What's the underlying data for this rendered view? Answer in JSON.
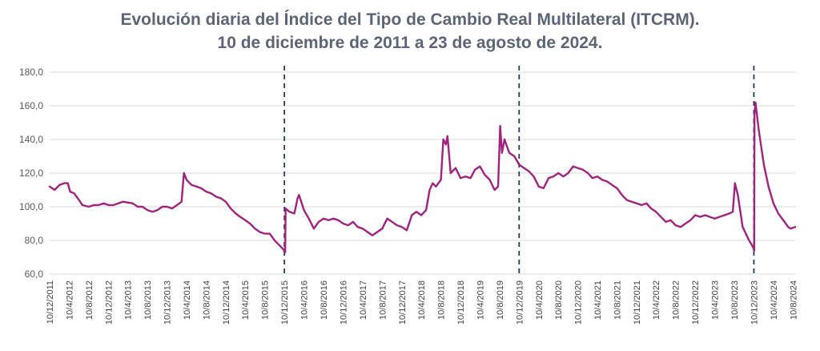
{
  "chart_data": {
    "type": "line",
    "title": "Evolución diaria del Índice del Tipo de Cambio Real Multilateral (ITCRM).",
    "subtitle": "10 de diciembre de 2011 a 23 de agosto de 2024.",
    "xlabel": "",
    "ylabel": "",
    "ylim": [
      60,
      180
    ],
    "y_ticks": [
      "60,0",
      "80,0",
      "100,0",
      "120,0",
      "140,0",
      "160,0",
      "180,0"
    ],
    "grid": true,
    "legend": "none",
    "x_range": [
      "2011-12-10",
      "2024-08-23"
    ],
    "x_ticks": [
      "10/12/2011",
      "10/4/2012",
      "10/8/2012",
      "10/12/2012",
      "10/4/2013",
      "10/8/2013",
      "10/12/2013",
      "10/4/2014",
      "10/8/2014",
      "10/12/2014",
      "10/4/2015",
      "10/8/2015",
      "10/12/2015",
      "10/4/2016",
      "10/8/2016",
      "10/12/2016",
      "10/4/2017",
      "10/8/2017",
      "10/12/2017",
      "10/4/2018",
      "10/8/2018",
      "10/12/2018",
      "10/4/2019",
      "10/8/2019",
      "10/12/2019",
      "10/4/2020",
      "10/8/2020",
      "10/12/2020",
      "10/4/2021",
      "10/8/2021",
      "10/12/2021",
      "10/4/2022",
      "10/8/2022",
      "10/12/2022",
      "10/4/2023",
      "10/8/2023",
      "10/12/2023",
      "10/4/2024",
      "10/8/2024"
    ],
    "vertical_markers": [
      "2015-12-10",
      "2019-12-10",
      "2023-12-10"
    ],
    "series": [
      {
        "color": "#a0237f",
        "points": [
          [
            "2011-12-10",
            112
          ],
          [
            "2012-01-10",
            110
          ],
          [
            "2012-02-10",
            113
          ],
          [
            "2012-03-10",
            114
          ],
          [
            "2012-04-01",
            114
          ],
          [
            "2012-04-15",
            109
          ],
          [
            "2012-05-10",
            108
          ],
          [
            "2012-06-10",
            104
          ],
          [
            "2012-07-01",
            101
          ],
          [
            "2012-08-10",
            100
          ],
          [
            "2012-09-10",
            101
          ],
          [
            "2012-10-10",
            101
          ],
          [
            "2012-11-10",
            102
          ],
          [
            "2012-12-10",
            101
          ],
          [
            "2013-01-10",
            101
          ],
          [
            "2013-03-10",
            103
          ],
          [
            "2013-05-10",
            102
          ],
          [
            "2013-06-10",
            100
          ],
          [
            "2013-07-10",
            100
          ],
          [
            "2013-08-10",
            98
          ],
          [
            "2013-09-10",
            97
          ],
          [
            "2013-10-10",
            98
          ],
          [
            "2013-11-10",
            100
          ],
          [
            "2013-12-10",
            100
          ],
          [
            "2014-01-10",
            99
          ],
          [
            "2014-02-10",
            101
          ],
          [
            "2014-03-10",
            103
          ],
          [
            "2014-03-25",
            120
          ],
          [
            "2014-04-10",
            116
          ],
          [
            "2014-05-10",
            113
          ],
          [
            "2014-06-10",
            112
          ],
          [
            "2014-07-10",
            111
          ],
          [
            "2014-08-10",
            109
          ],
          [
            "2014-09-10",
            108
          ],
          [
            "2014-10-10",
            106
          ],
          [
            "2014-11-10",
            105
          ],
          [
            "2014-12-10",
            103
          ],
          [
            "2015-01-10",
            99
          ],
          [
            "2015-02-10",
            96
          ],
          [
            "2015-03-10",
            94
          ],
          [
            "2015-04-10",
            92
          ],
          [
            "2015-05-10",
            90
          ],
          [
            "2015-06-10",
            87
          ],
          [
            "2015-07-10",
            85
          ],
          [
            "2015-08-10",
            84
          ],
          [
            "2015-09-10",
            84
          ],
          [
            "2015-10-10",
            80
          ],
          [
            "2015-11-10",
            77
          ],
          [
            "2015-12-01",
            75
          ],
          [
            "2015-12-15",
            73
          ],
          [
            "2015-12-18",
            99
          ],
          [
            "2016-01-10",
            97
          ],
          [
            "2016-02-10",
            96
          ],
          [
            "2016-03-01",
            105
          ],
          [
            "2016-03-10",
            107
          ],
          [
            "2016-04-10",
            98
          ],
          [
            "2016-05-10",
            93
          ],
          [
            "2016-06-10",
            87
          ],
          [
            "2016-07-10",
            91
          ],
          [
            "2016-08-10",
            93
          ],
          [
            "2016-09-10",
            92
          ],
          [
            "2016-10-10",
            93
          ],
          [
            "2016-11-10",
            92
          ],
          [
            "2016-12-10",
            90
          ],
          [
            "2017-01-10",
            89
          ],
          [
            "2017-02-10",
            91
          ],
          [
            "2017-03-10",
            88
          ],
          [
            "2017-04-10",
            87
          ],
          [
            "2017-05-10",
            85
          ],
          [
            "2017-06-10",
            83
          ],
          [
            "2017-07-10",
            85
          ],
          [
            "2017-08-10",
            87
          ],
          [
            "2017-09-10",
            93
          ],
          [
            "2017-10-10",
            91
          ],
          [
            "2017-11-10",
            89
          ],
          [
            "2017-12-10",
            88
          ],
          [
            "2018-01-10",
            86
          ],
          [
            "2018-02-10",
            95
          ],
          [
            "2018-03-10",
            97
          ],
          [
            "2018-04-10",
            95
          ],
          [
            "2018-05-10",
            98
          ],
          [
            "2018-06-01",
            110
          ],
          [
            "2018-06-20",
            114
          ],
          [
            "2018-07-10",
            112
          ],
          [
            "2018-08-10",
            116
          ],
          [
            "2018-08-25",
            140
          ],
          [
            "2018-09-10",
            137
          ],
          [
            "2018-09-20",
            142
          ],
          [
            "2018-10-10",
            120
          ],
          [
            "2018-11-10",
            123
          ],
          [
            "2018-12-10",
            117
          ],
          [
            "2019-01-10",
            118
          ],
          [
            "2019-02-10",
            117
          ],
          [
            "2019-03-10",
            122
          ],
          [
            "2019-04-10",
            124
          ],
          [
            "2019-05-10",
            119
          ],
          [
            "2019-06-10",
            116
          ],
          [
            "2019-07-10",
            110
          ],
          [
            "2019-08-01",
            112
          ],
          [
            "2019-08-14",
            148
          ],
          [
            "2019-08-25",
            132
          ],
          [
            "2019-09-10",
            140
          ],
          [
            "2019-10-10",
            132
          ],
          [
            "2019-11-10",
            130
          ],
          [
            "2019-12-10",
            125
          ],
          [
            "2020-01-10",
            123
          ],
          [
            "2020-02-10",
            121
          ],
          [
            "2020-03-10",
            118
          ],
          [
            "2020-04-10",
            112
          ],
          [
            "2020-05-10",
            111
          ],
          [
            "2020-06-10",
            117
          ],
          [
            "2020-07-10",
            118
          ],
          [
            "2020-08-10",
            120
          ],
          [
            "2020-09-10",
            118
          ],
          [
            "2020-10-10",
            120
          ],
          [
            "2020-11-10",
            124
          ],
          [
            "2020-12-10",
            123
          ],
          [
            "2021-01-10",
            122
          ],
          [
            "2021-02-10",
            120
          ],
          [
            "2021-03-10",
            117
          ],
          [
            "2021-04-10",
            118
          ],
          [
            "2021-05-10",
            116
          ],
          [
            "2021-06-10",
            115
          ],
          [
            "2021-07-10",
            113
          ],
          [
            "2021-08-10",
            111
          ],
          [
            "2021-09-10",
            107
          ],
          [
            "2021-10-10",
            104
          ],
          [
            "2021-11-10",
            103
          ],
          [
            "2021-12-10",
            102
          ],
          [
            "2022-01-10",
            101
          ],
          [
            "2022-02-10",
            102
          ],
          [
            "2022-03-10",
            99
          ],
          [
            "2022-04-10",
            97
          ],
          [
            "2022-05-10",
            94
          ],
          [
            "2022-06-10",
            91
          ],
          [
            "2022-07-10",
            92
          ],
          [
            "2022-08-10",
            89
          ],
          [
            "2022-09-10",
            88
          ],
          [
            "2022-10-10",
            90
          ],
          [
            "2022-11-10",
            92
          ],
          [
            "2022-12-10",
            95
          ],
          [
            "2023-01-10",
            94
          ],
          [
            "2023-02-10",
            95
          ],
          [
            "2023-03-10",
            94
          ],
          [
            "2023-04-10",
            93
          ],
          [
            "2023-05-10",
            94
          ],
          [
            "2023-06-10",
            95
          ],
          [
            "2023-07-10",
            96
          ],
          [
            "2023-08-01",
            97
          ],
          [
            "2023-08-14",
            114
          ],
          [
            "2023-09-01",
            107
          ],
          [
            "2023-10-01",
            88
          ],
          [
            "2023-11-10",
            80
          ],
          [
            "2023-12-05",
            76
          ],
          [
            "2023-12-12",
            74
          ],
          [
            "2023-12-14",
            155
          ],
          [
            "2023-12-20",
            162
          ],
          [
            "2024-01-10",
            145
          ],
          [
            "2024-02-10",
            125
          ],
          [
            "2024-03-10",
            112
          ],
          [
            "2024-04-10",
            102
          ],
          [
            "2024-05-10",
            96
          ],
          [
            "2024-06-10",
            92
          ],
          [
            "2024-07-10",
            88
          ],
          [
            "2024-07-25",
            87
          ],
          [
            "2024-08-23",
            88
          ]
        ]
      }
    ]
  }
}
